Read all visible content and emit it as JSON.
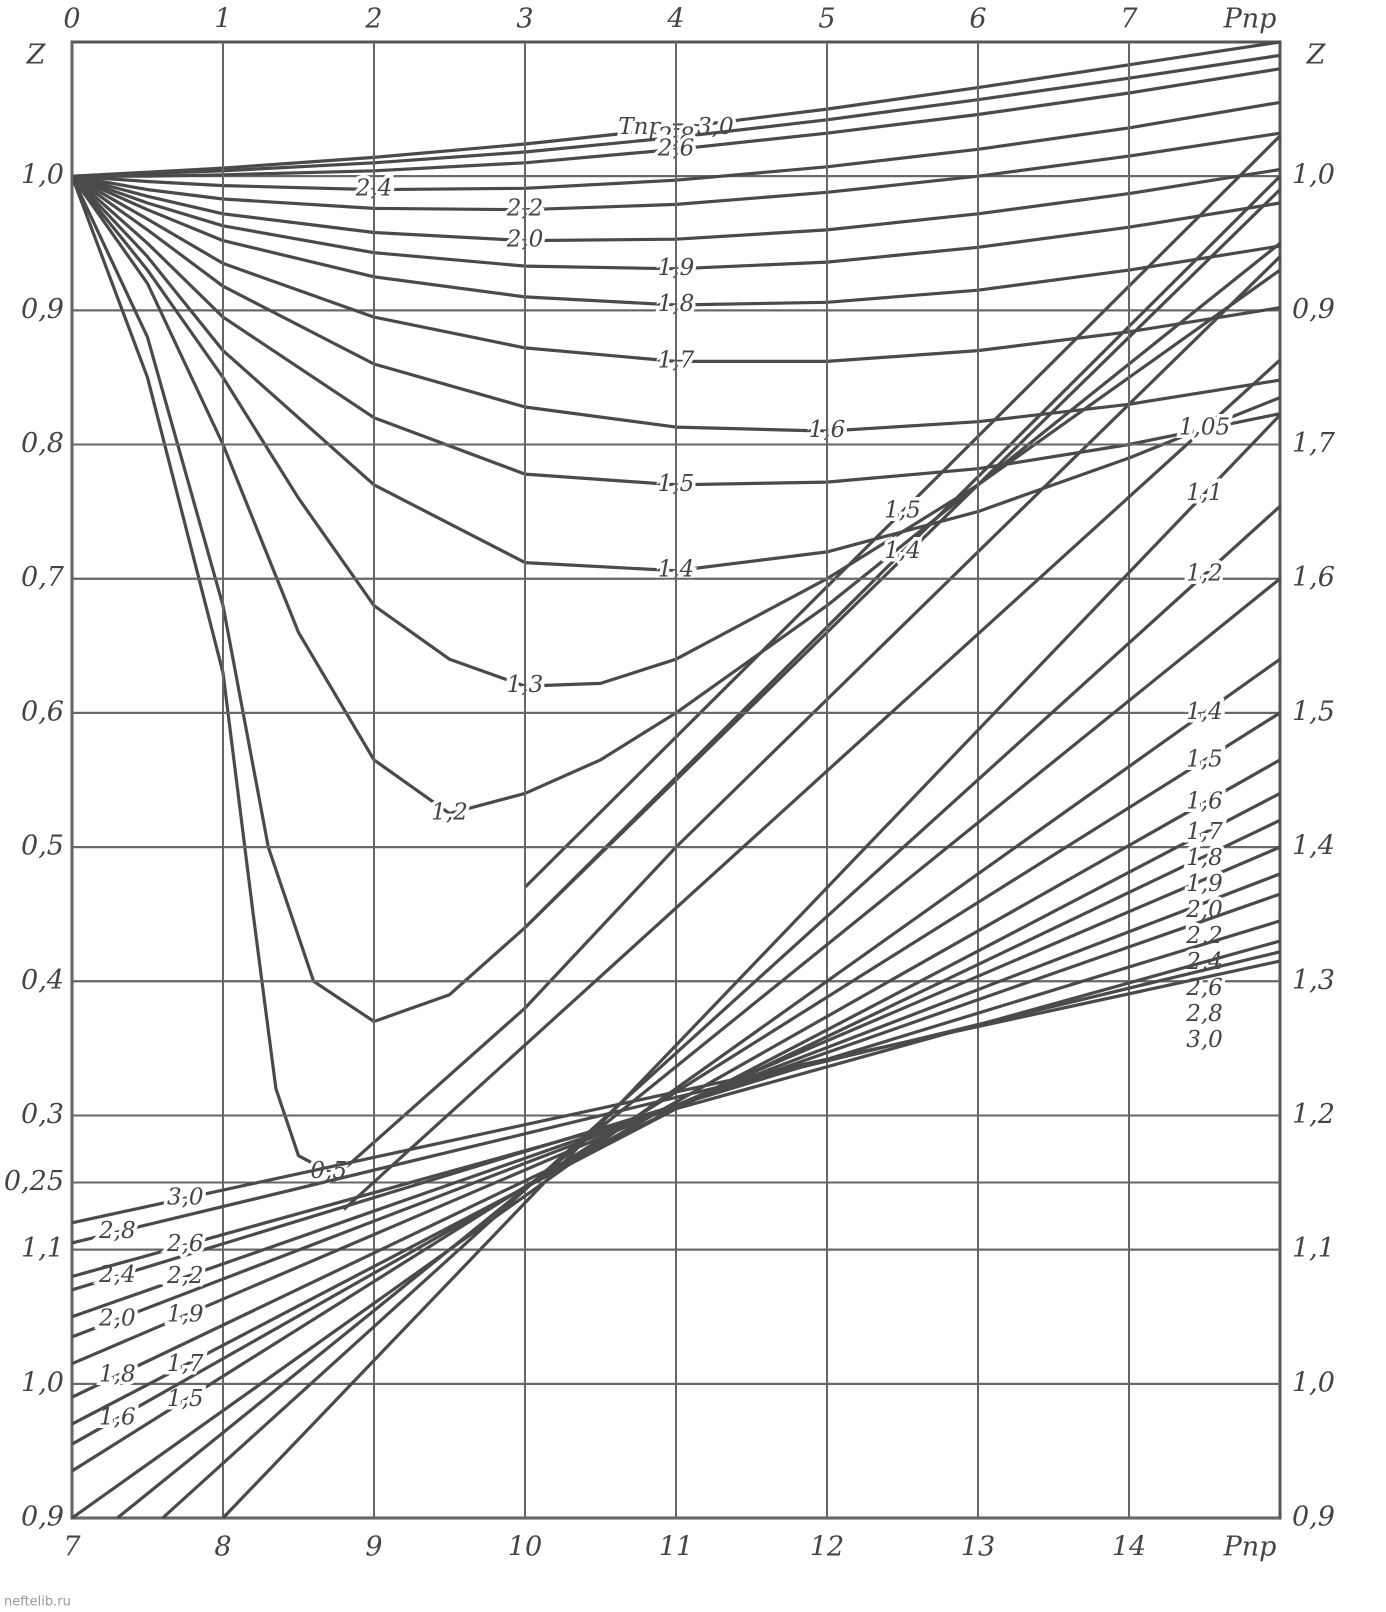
{
  "chart_data": [
    {
      "type": "line",
      "x_axis_side": "top",
      "grid": true,
      "color": "#4a4a4a",
      "y_label": "Z",
      "y2_label": "Z",
      "x_label": "Pпр",
      "xlim": [
        0,
        8
      ],
      "xticks": [
        0,
        1,
        2,
        3,
        4,
        5,
        6,
        7
      ],
      "ylim": [
        0,
        1.1
      ],
      "yticks": [
        {
          "value": 0.25,
          "label": "0,25"
        },
        {
          "value": 0.3,
          "label": "0,3"
        },
        {
          "value": 0.4,
          "label": "0,4"
        },
        {
          "value": 0.5,
          "label": "0,5"
        },
        {
          "value": 0.6,
          "label": "0,6"
        },
        {
          "value": 0.7,
          "label": "0,7"
        },
        {
          "value": 0.8,
          "label": "0,8"
        },
        {
          "value": 0.9,
          "label": "0,9"
        },
        {
          "value": 1.0,
          "label": "1,0"
        }
      ],
      "y2lim": [
        0,
        1.1
      ],
      "y2ticks": [
        {
          "value": 0.9,
          "label": "0,9"
        },
        {
          "value": 1.0,
          "label": "1,0"
        }
      ],
      "series": [
        {
          "name": "Tпр = 3,0",
          "x": [
            0,
            0.5,
            1,
            2,
            3,
            4,
            5,
            6,
            7,
            8
          ],
          "values": [
            1.0,
            1.003,
            1.006,
            1.014,
            1.024,
            1.036,
            1.05,
            1.066,
            1.083,
            1.1
          ]
        },
        {
          "name": "2,8",
          "x": [
            0,
            0.5,
            1,
            2,
            3,
            4,
            5,
            6,
            7,
            8
          ],
          "values": [
            1.0,
            1.002,
            1.004,
            1.01,
            1.018,
            1.029,
            1.042,
            1.057,
            1.073,
            1.09
          ]
        },
        {
          "name": "2,6",
          "x": [
            0,
            0.5,
            1,
            2,
            3,
            4,
            5,
            6,
            7,
            8
          ],
          "values": [
            1.0,
            1.0,
            1.001,
            1.004,
            1.01,
            1.02,
            1.032,
            1.046,
            1.062,
            1.08
          ]
        },
        {
          "name": "2,4",
          "x": [
            0,
            0.5,
            1,
            2,
            3,
            4,
            5,
            6,
            7,
            8
          ],
          "values": [
            1.0,
            0.996,
            0.993,
            0.99,
            0.991,
            0.997,
            1.007,
            1.02,
            1.036,
            1.055
          ]
        },
        {
          "name": "2,2",
          "x": [
            0,
            0.5,
            1,
            2,
            3,
            4,
            5,
            6,
            7,
            8
          ],
          "values": [
            1.0,
            0.99,
            0.983,
            0.976,
            0.975,
            0.979,
            0.988,
            1.0,
            1.015,
            1.032
          ]
        },
        {
          "name": "2,0",
          "x": [
            0,
            0.5,
            1,
            2,
            3,
            4,
            5,
            6,
            7,
            8
          ],
          "values": [
            1.0,
            0.985,
            0.972,
            0.958,
            0.952,
            0.953,
            0.96,
            0.972,
            0.987,
            1.005
          ]
        },
        {
          "name": "1,9",
          "x": [
            0,
            0.5,
            1,
            2,
            3,
            4,
            5,
            6,
            7,
            8
          ],
          "values": [
            1.0,
            0.98,
            0.963,
            0.943,
            0.933,
            0.931,
            0.936,
            0.947,
            0.962,
            0.98
          ]
        },
        {
          "name": "1,8",
          "x": [
            0,
            0.5,
            1,
            2,
            3,
            4,
            5,
            6,
            7,
            8
          ],
          "values": [
            1.0,
            0.975,
            0.952,
            0.925,
            0.91,
            0.904,
            0.906,
            0.915,
            0.93,
            0.948
          ]
        },
        {
          "name": "1,7",
          "x": [
            0,
            0.5,
            1,
            2,
            3,
            4,
            5,
            6,
            7,
            8
          ],
          "values": [
            1.0,
            0.968,
            0.935,
            0.895,
            0.872,
            0.862,
            0.862,
            0.87,
            0.884,
            0.902
          ]
        },
        {
          "name": "1,6",
          "x": [
            0,
            0.5,
            1,
            2,
            3,
            4,
            5,
            6,
            7,
            8
          ],
          "values": [
            1.0,
            0.96,
            0.918,
            0.86,
            0.828,
            0.813,
            0.81,
            0.817,
            0.83,
            0.848
          ]
        },
        {
          "name": "1,5",
          "x": [
            0,
            0.5,
            1,
            2,
            3,
            4,
            5,
            6,
            7,
            8
          ],
          "values": [
            1.0,
            0.95,
            0.895,
            0.82,
            0.778,
            0.77,
            0.772,
            0.782,
            0.8,
            0.823
          ]
        },
        {
          "name": "1,4",
          "x": [
            0,
            0.5,
            1,
            2,
            3,
            4,
            5,
            6,
            7,
            8
          ],
          "values": [
            1.0,
            0.94,
            0.87,
            0.77,
            0.712,
            0.706,
            0.72,
            0.75,
            0.79,
            0.835
          ]
        },
        {
          "name": "1,3",
          "x": [
            0,
            0.5,
            1,
            1.5,
            2,
            2.5,
            3,
            3.5,
            4,
            5,
            6,
            7,
            8
          ],
          "values": [
            1.0,
            0.93,
            0.85,
            0.76,
            0.68,
            0.64,
            0.62,
            0.622,
            0.64,
            0.7,
            0.77,
            0.85,
            0.93
          ]
        },
        {
          "name": "1,2",
          "x": [
            0,
            0.5,
            1,
            1.5,
            2,
            2.5,
            3,
            3.5,
            4,
            5,
            6,
            7,
            8
          ],
          "values": [
            1.0,
            0.92,
            0.8,
            0.66,
            0.565,
            0.525,
            0.54,
            0.565,
            0.6,
            0.68,
            0.77,
            0.86,
            0.95
          ]
        },
        {
          "x": [
            0,
            0.5,
            1,
            1.3,
            1.6,
            2,
            2.5,
            3,
            4,
            5,
            6,
            7,
            8
          ],
          "values": [
            1.0,
            0.88,
            0.68,
            0.5,
            0.4,
            0.37,
            0.39,
            0.44,
            0.55,
            0.66,
            0.77,
            0.88,
            0.99
          ]
        },
        {
          "name": "0,5",
          "x": [
            0,
            0.5,
            1,
            1.2,
            1.35,
            1.5,
            1.7,
            1.8,
            2,
            3,
            4,
            5,
            6,
            7,
            8
          ],
          "values": [
            1.0,
            0.85,
            0.63,
            0.45,
            0.32,
            0.27,
            0.258,
            0.26,
            0.28,
            0.38,
            0.5,
            0.61,
            0.72,
            0.83,
            0.94
          ]
        },
        {
          "name": "1,5",
          "x": [
            3,
            8
          ],
          "values": [
            0.47,
            1.03
          ]
        },
        {
          "name": "1,4",
          "x": [
            3,
            8
          ],
          "values": [
            0.44,
            1.0
          ]
        }
      ]
    },
    {
      "type": "line",
      "x_axis_side": "bottom",
      "grid": true,
      "color": "#4a4a4a",
      "x_label": "Pпр",
      "xlim": [
        7,
        15
      ],
      "xticks": [
        7,
        8,
        9,
        10,
        11,
        12,
        13,
        14
      ],
      "ylim": [
        0.9,
        2.0
      ],
      "yticks": [
        {
          "value": 0.9,
          "label": "0,9"
        },
        {
          "value": 1.0,
          "label": "1,0"
        },
        {
          "value": 1.1,
          "label": "1,1"
        }
      ],
      "y2lim": [
        0.9,
        2.0
      ],
      "y2ticks": [
        {
          "value": 0.9,
          "label": "0,9"
        },
        {
          "value": 1.0,
          "label": "1,0"
        },
        {
          "value": 1.1,
          "label": "1,1"
        },
        {
          "value": 1.2,
          "label": "1,2"
        },
        {
          "value": 1.3,
          "label": "1,3"
        },
        {
          "value": 1.4,
          "label": "1,4"
        },
        {
          "value": 1.5,
          "label": "1,5"
        },
        {
          "value": 1.6,
          "label": "1,6"
        },
        {
          "value": 1.7,
          "label": "1,7"
        }
      ],
      "series": [
        {
          "name": "1,05",
          "x": [
            8.8,
            15
          ],
          "values": [
            1.13,
            1.763
          ]
        },
        {
          "name": "1,1",
          "x": [
            8.0,
            15
          ],
          "values": [
            0.9,
            1.722
          ]
        },
        {
          "name": "1,2",
          "x": [
            7.6,
            15
          ],
          "values": [
            0.9,
            1.654
          ]
        },
        {
          "x": [
            7.3,
            15
          ],
          "values": [
            0.9,
            1.6
          ]
        },
        {
          "name": "1,4",
          "x": [
            7,
            15
          ],
          "values": [
            0.9,
            1.54
          ]
        },
        {
          "name": "1,5",
          "x": [
            7,
            15
          ],
          "values": [
            0.935,
            1.5
          ]
        },
        {
          "name": "1,6",
          "x": [
            7,
            15
          ],
          "values": [
            0.955,
            1.465
          ]
        },
        {
          "name": "1,7",
          "x": [
            7,
            15
          ],
          "values": [
            0.97,
            1.44
          ]
        },
        {
          "name": "1,8",
          "x": [
            7,
            15
          ],
          "values": [
            0.99,
            1.42
          ]
        },
        {
          "name": "1,9",
          "x": [
            7,
            15
          ],
          "values": [
            1.015,
            1.4
          ]
        },
        {
          "name": "2,0",
          "x": [
            7,
            15
          ],
          "values": [
            1.035,
            1.38
          ]
        },
        {
          "name": "2,2",
          "x": [
            7,
            15
          ],
          "values": [
            1.05,
            1.365
          ]
        },
        {
          "name": "2,4",
          "x": [
            7,
            15
          ],
          "values": [
            1.07,
            1.345
          ]
        },
        {
          "name": "2,6",
          "x": [
            7,
            15
          ],
          "values": [
            1.08,
            1.33
          ]
        },
        {
          "name": "2,8",
          "x": [
            7,
            15
          ],
          "values": [
            1.105,
            1.322
          ]
        },
        {
          "name": "3,0",
          "x": [
            7,
            15
          ],
          "values": [
            1.12,
            1.315
          ]
        }
      ]
    }
  ],
  "watermark": "neftelib.ru"
}
